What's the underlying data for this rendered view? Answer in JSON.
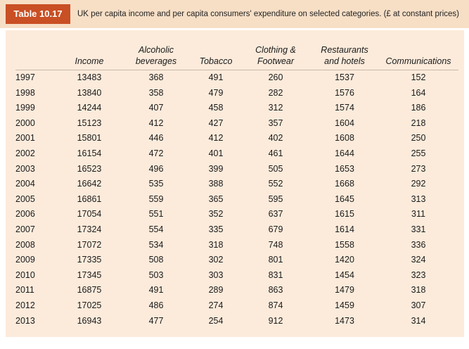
{
  "table_label": "Table 10.17",
  "caption": "UK per capita income and per capita consumers' expenditure on selected categories. (£ at constant prices)",
  "columns": {
    "income": "Income",
    "alcohol_l1": "Alcoholic",
    "alcohol_l2": "beverages",
    "tobacco": "Tobacco",
    "clothing_l1": "Clothing &",
    "clothing_l2": "Footwear",
    "restaurants_l1": "Restaurants",
    "restaurants_l2": "and hotels",
    "communications": "Communications"
  },
  "rows": [
    [
      "1997",
      "13483",
      "368",
      "491",
      "260",
      "1537",
      "152"
    ],
    [
      "1998",
      "13840",
      "358",
      "479",
      "282",
      "1576",
      "164"
    ],
    [
      "1999",
      "14244",
      "407",
      "458",
      "312",
      "1574",
      "186"
    ],
    [
      "2000",
      "15123",
      "412",
      "427",
      "357",
      "1604",
      "218"
    ],
    [
      "2001",
      "15801",
      "446",
      "412",
      "402",
      "1608",
      "250"
    ],
    [
      "2002",
      "16154",
      "472",
      "401",
      "461",
      "1644",
      "255"
    ],
    [
      "2003",
      "16523",
      "496",
      "399",
      "505",
      "1653",
      "273"
    ],
    [
      "2004",
      "16642",
      "535",
      "388",
      "552",
      "1668",
      "292"
    ],
    [
      "2005",
      "16861",
      "559",
      "365",
      "595",
      "1645",
      "313"
    ],
    [
      "2006",
      "17054",
      "551",
      "352",
      "637",
      "1615",
      "311"
    ],
    [
      "2007",
      "17324",
      "554",
      "335",
      "679",
      "1614",
      "331"
    ],
    [
      "2008",
      "17072",
      "534",
      "318",
      "748",
      "1558",
      "336"
    ],
    [
      "2009",
      "17335",
      "508",
      "302",
      "801",
      "1420",
      "324"
    ],
    [
      "2010",
      "17345",
      "503",
      "303",
      "831",
      "1454",
      "323"
    ],
    [
      "2011",
      "16875",
      "491",
      "289",
      "863",
      "1479",
      "318"
    ],
    [
      "2012",
      "17025",
      "486",
      "274",
      "874",
      "1459",
      "307"
    ],
    [
      "2013",
      "16943",
      "477",
      "254",
      "912",
      "1473",
      "314"
    ]
  ],
  "colors": {
    "badge": "#c94f24",
    "header_bg": "#f7dfc6",
    "panel_bg": "#fcebdb"
  }
}
